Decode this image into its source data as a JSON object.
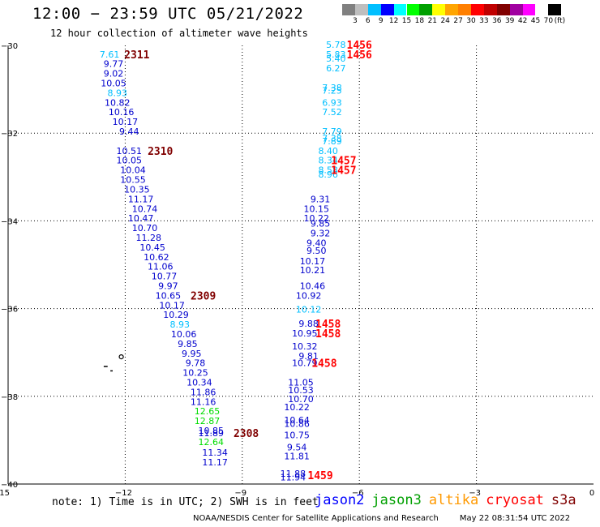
{
  "title": "12:00 − 23:59 UTC 05/21/2022",
  "subtitle": "12 hour collection of altimeter wave heights",
  "colorbar": {
    "swatches": [
      "#808080",
      "#bebebe",
      "#00bfff",
      "#0000ff",
      "#00ffff",
      "#00ff00",
      "#00a000",
      "#ffff00",
      "#ffa500",
      "#ff7f00",
      "#ff0000",
      "#c00000",
      "#800000",
      "#a000a0",
      "#ff00ff",
      "#ffffff",
      "#000000"
    ],
    "labels": [
      "3",
      "6",
      "9",
      "12",
      "15",
      "18",
      "21",
      "24",
      "27",
      "30",
      "33",
      "36",
      "39",
      "42",
      "45",
      "70",
      "(ft)"
    ]
  },
  "map": {
    "lon_range": [
      -15,
      0
    ],
    "lat_range": [
      -40,
      -30
    ],
    "x_ticks": [
      "−15",
      "−12",
      "−9",
      "−6",
      "−3",
      "0"
    ],
    "y_ticks": [
      "−30",
      "−32",
      "−34",
      "−36",
      "−38",
      "−40"
    ],
    "colors": {
      "c": "#00bfff",
      "b": "#0000cd",
      "g": "#00dd00",
      "dr": "#800000",
      "r": "#ff0000"
    },
    "tracks": [
      {
        "points": [
          {
            "lon": -12.4,
            "lat": -30.2,
            "v": "7.61",
            "c": "c"
          },
          {
            "lon": -12.3,
            "lat": -30.42,
            "v": "9.77",
            "c": "b"
          },
          {
            "lon": -12.3,
            "lat": -30.64,
            "v": "9.02",
            "c": "b"
          },
          {
            "lon": -12.3,
            "lat": -30.86,
            "v": "10.05",
            "c": "b"
          },
          {
            "lon": -12.2,
            "lat": -31.08,
            "v": "8.93",
            "c": "c"
          },
          {
            "lon": -12.2,
            "lat": -31.3,
            "v": "10.82",
            "c": "b"
          },
          {
            "lon": -12.1,
            "lat": -31.52,
            "v": "10.16",
            "c": "b"
          },
          {
            "lon": -12.0,
            "lat": -31.74,
            "v": "10.17",
            "c": "b"
          },
          {
            "lon": -11.9,
            "lat": -31.96,
            "v": "9.44",
            "c": "b"
          },
          {
            "lon": -11.9,
            "lat": -32.4,
            "v": "10.51",
            "c": "b"
          },
          {
            "lon": -11.9,
            "lat": -32.62,
            "v": "10.05",
            "c": "b"
          },
          {
            "lon": -11.8,
            "lat": -32.84,
            "v": "10.04",
            "c": "b"
          },
          {
            "lon": -11.8,
            "lat": -33.06,
            "v": "10.55",
            "c": "b"
          },
          {
            "lon": -11.7,
            "lat": -33.28,
            "v": "10.35",
            "c": "b"
          },
          {
            "lon": -11.6,
            "lat": -33.5,
            "v": "11.17",
            "c": "b"
          },
          {
            "lon": -11.5,
            "lat": -33.72,
            "v": "10.74",
            "c": "b"
          },
          {
            "lon": -11.6,
            "lat": -33.94,
            "v": "10.47",
            "c": "b"
          },
          {
            "lon": -11.5,
            "lat": -34.16,
            "v": "10.70",
            "c": "b"
          },
          {
            "lon": -11.4,
            "lat": -34.38,
            "v": "11.28",
            "c": "b"
          },
          {
            "lon": -11.3,
            "lat": -34.6,
            "v": "10.45",
            "c": "b"
          },
          {
            "lon": -11.2,
            "lat": -34.82,
            "v": "10.62",
            "c": "b"
          },
          {
            "lon": -11.1,
            "lat": -35.04,
            "v": "11.06",
            "c": "b"
          },
          {
            "lon": -11.0,
            "lat": -35.26,
            "v": "10.77",
            "c": "b"
          },
          {
            "lon": -10.9,
            "lat": -35.48,
            "v": "9.97",
            "c": "b"
          },
          {
            "lon": -10.9,
            "lat": -35.7,
            "v": "10.65",
            "c": "b"
          },
          {
            "lon": -10.8,
            "lat": -35.92,
            "v": "10.17",
            "c": "b"
          },
          {
            "lon": -10.7,
            "lat": -36.14,
            "v": "10.29",
            "c": "b"
          },
          {
            "lon": -10.6,
            "lat": -36.36,
            "v": "8.93",
            "c": "c"
          },
          {
            "lon": -10.5,
            "lat": -36.58,
            "v": "10.06",
            "c": "b"
          },
          {
            "lon": -10.4,
            "lat": -36.8,
            "v": "9.85",
            "c": "b"
          },
          {
            "lon": -10.3,
            "lat": -37.02,
            "v": "9.95",
            "c": "b"
          },
          {
            "lon": -10.2,
            "lat": -37.24,
            "v": "9.78",
            "c": "b"
          },
          {
            "lon": -10.2,
            "lat": -37.46,
            "v": "10.25",
            "c": "b"
          },
          {
            "lon": -10.1,
            "lat": -37.68,
            "v": "10.34",
            "c": "b"
          },
          {
            "lon": -10.0,
            "lat": -37.9,
            "v": "11.86",
            "c": "b"
          },
          {
            "lon": -10.0,
            "lat": -38.12,
            "v": "11.16",
            "c": "b"
          },
          {
            "lon": -9.9,
            "lat": -38.34,
            "v": "12.65",
            "c": "g"
          },
          {
            "lon": -9.9,
            "lat": -38.56,
            "v": "12.87",
            "c": "g"
          },
          {
            "lon": -9.8,
            "lat": -38.78,
            "v": "10.85",
            "c": "b"
          },
          {
            "lon": -9.8,
            "lat": -38.84,
            "v": "11.89",
            "c": "b"
          },
          {
            "lon": -9.8,
            "lat": -39.04,
            "v": "12.64",
            "c": "g"
          },
          {
            "lon": -9.7,
            "lat": -39.28,
            "v": "11.34",
            "c": "b"
          },
          {
            "lon": -9.7,
            "lat": -39.5,
            "v": "11.17",
            "c": "b"
          }
        ],
        "tags": [
          {
            "lon": -11.7,
            "lat": -30.2,
            "t": "2311",
            "c": "dr"
          },
          {
            "lon": -11.1,
            "lat": -32.4,
            "t": "2310",
            "c": "dr"
          },
          {
            "lon": -10.0,
            "lat": -35.7,
            "t": "2309",
            "c": "dr"
          },
          {
            "lon": -8.9,
            "lat": -38.84,
            "t": "2308",
            "c": "dr"
          }
        ]
      },
      {
        "points": [
          {
            "lon": -6.6,
            "lat": -29.98,
            "v": "5.78",
            "c": "c"
          },
          {
            "lon": -6.6,
            "lat": -30.2,
            "v": "5.83",
            "c": "c"
          },
          {
            "lon": -6.6,
            "lat": -30.3,
            "v": "5.40",
            "c": "c"
          },
          {
            "lon": -6.6,
            "lat": -30.52,
            "v": "6.27",
            "c": "c"
          },
          {
            "lon": -6.7,
            "lat": -30.96,
            "v": "7.38",
            "c": "c"
          },
          {
            "lon": -6.7,
            "lat": -31.03,
            "v": "7.25",
            "c": "c"
          },
          {
            "lon": -6.7,
            "lat": -31.3,
            "v": "6.93",
            "c": "c"
          },
          {
            "lon": -6.7,
            "lat": -31.52,
            "v": "7.52",
            "c": "c"
          },
          {
            "lon": -6.7,
            "lat": -31.96,
            "v": "7.79",
            "c": "c"
          },
          {
            "lon": -6.7,
            "lat": -32.12,
            "v": "7.38",
            "c": "c"
          },
          {
            "lon": -6.7,
            "lat": -32.18,
            "v": "7.89",
            "c": "c"
          },
          {
            "lon": -6.8,
            "lat": -32.4,
            "v": "8.40",
            "c": "c"
          },
          {
            "lon": -6.8,
            "lat": -32.62,
            "v": "8.34",
            "c": "c"
          },
          {
            "lon": -6.8,
            "lat": -32.84,
            "v": "8.58",
            "c": "c"
          },
          {
            "lon": -6.8,
            "lat": -32.94,
            "v": "8.96",
            "c": "c"
          },
          {
            "lon": -7.0,
            "lat": -33.5,
            "v": "9.31",
            "c": "b"
          },
          {
            "lon": -7.1,
            "lat": -33.72,
            "v": "10.15",
            "c": "b"
          },
          {
            "lon": -7.1,
            "lat": -33.94,
            "v": "10.22",
            "c": "b"
          },
          {
            "lon": -7.0,
            "lat": -34.06,
            "v": "9.85",
            "c": "b"
          },
          {
            "lon": -7.0,
            "lat": -34.28,
            "v": "9.32",
            "c": "b"
          },
          {
            "lon": -7.1,
            "lat": -34.5,
            "v": "9.40",
            "c": "b"
          },
          {
            "lon": -7.1,
            "lat": -34.68,
            "v": "9.50",
            "c": "b"
          },
          {
            "lon": -7.2,
            "lat": -34.92,
            "v": "10.17",
            "c": "b"
          },
          {
            "lon": -7.2,
            "lat": -35.12,
            "v": "10.21",
            "c": "b"
          },
          {
            "lon": -7.2,
            "lat": -35.48,
            "v": "10.46",
            "c": "b"
          },
          {
            "lon": -7.3,
            "lat": -35.7,
            "v": "10.92",
            "c": "b"
          },
          {
            "lon": -7.3,
            "lat": -36.02,
            "v": "10.12",
            "c": "c"
          },
          {
            "lon": -7.3,
            "lat": -36.34,
            "v": "9.88",
            "c": "b"
          },
          {
            "lon": -7.4,
            "lat": -36.56,
            "v": "10.95",
            "c": "b"
          },
          {
            "lon": -7.4,
            "lat": -36.86,
            "v": "10.32",
            "c": "b"
          },
          {
            "lon": -7.3,
            "lat": -37.08,
            "v": "9.81",
            "c": "b"
          },
          {
            "lon": -7.4,
            "lat": -37.24,
            "v": "10.79",
            "c": "b"
          },
          {
            "lon": -7.5,
            "lat": -37.68,
            "v": "11.05",
            "c": "b"
          },
          {
            "lon": -7.5,
            "lat": -37.86,
            "v": "10.53",
            "c": "b"
          },
          {
            "lon": -7.5,
            "lat": -38.06,
            "v": "10.70",
            "c": "b"
          },
          {
            "lon": -7.6,
            "lat": -38.24,
            "v": "10.22",
            "c": "b"
          },
          {
            "lon": -7.6,
            "lat": -38.54,
            "v": "10.64",
            "c": "b"
          },
          {
            "lon": -7.6,
            "lat": -38.62,
            "v": "10.86",
            "c": "b"
          },
          {
            "lon": -7.6,
            "lat": -38.88,
            "v": "10.75",
            "c": "b"
          },
          {
            "lon": -7.6,
            "lat": -39.16,
            "v": "9.54",
            "c": "b"
          },
          {
            "lon": -7.6,
            "lat": -39.36,
            "v": "11.81",
            "c": "b"
          },
          {
            "lon": -7.7,
            "lat": -39.76,
            "v": "11.88",
            "c": "b"
          },
          {
            "lon": -7.7,
            "lat": -39.84,
            "v": "11.94",
            "c": "b"
          }
        ],
        "tags": [
          {
            "lon": -6.0,
            "lat": -29.98,
            "t": "1456",
            "c": "r"
          },
          {
            "lon": -6.0,
            "lat": -30.2,
            "t": "1456",
            "c": "r"
          },
          {
            "lon": -6.4,
            "lat": -32.62,
            "t": "1457",
            "c": "r"
          },
          {
            "lon": -6.4,
            "lat": -32.84,
            "t": "1457",
            "c": "r"
          },
          {
            "lon": -6.8,
            "lat": -36.34,
            "t": "1458",
            "c": "r"
          },
          {
            "lon": -6.8,
            "lat": -36.56,
            "t": "1458",
            "c": "r"
          },
          {
            "lon": -6.9,
            "lat": -37.24,
            "t": "1458",
            "c": "r"
          },
          {
            "lon": -7.0,
            "lat": -39.8,
            "t": "1459",
            "c": "r"
          }
        ]
      }
    ]
  },
  "note": "note: 1) Time is in UTC; 2) SWH is in feet",
  "legend": [
    {
      "label": "jason2",
      "color": "#0000ff"
    },
    {
      "label": "jason3",
      "color": "#00a000"
    },
    {
      "label": "altika",
      "color": "#ff9900"
    },
    {
      "label": "cryosat",
      "color": "#ff0000"
    },
    {
      "label": "s3a",
      "color": "#800000"
    }
  ],
  "footer": {
    "credit": "NOAA/NESDIS Center for Satellite Applications and Research",
    "timestamp": "May 22 08:31:54 UTC 2022"
  }
}
